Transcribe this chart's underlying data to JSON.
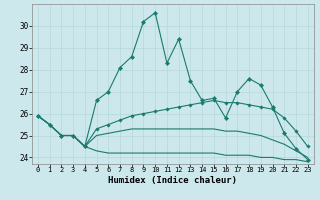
{
  "xlabel": "Humidex (Indice chaleur)",
  "bg_color": "#cce8ec",
  "line_color": "#1a7a6e",
  "grid_color": "#b0d4d8",
  "x": [
    0,
    1,
    2,
    3,
    4,
    5,
    6,
    7,
    8,
    9,
    10,
    11,
    12,
    13,
    14,
    15,
    16,
    17,
    18,
    19,
    20,
    21,
    22,
    23
  ],
  "series1": [
    25.9,
    25.5,
    25.0,
    25.0,
    24.5,
    26.6,
    27.0,
    28.1,
    28.6,
    30.2,
    30.6,
    28.3,
    29.4,
    27.5,
    26.6,
    26.7,
    25.8,
    27.0,
    27.6,
    27.3,
    26.3,
    25.1,
    24.4,
    23.9
  ],
  "series2": [
    25.9,
    25.5,
    25.0,
    25.0,
    24.5,
    25.3,
    25.5,
    25.7,
    25.9,
    26.0,
    26.1,
    26.2,
    26.3,
    26.4,
    26.5,
    26.6,
    26.5,
    26.5,
    26.4,
    26.3,
    26.2,
    25.8,
    25.2,
    24.5
  ],
  "series3": [
    25.9,
    25.5,
    25.0,
    25.0,
    24.5,
    25.0,
    25.1,
    25.2,
    25.3,
    25.3,
    25.3,
    25.3,
    25.3,
    25.3,
    25.3,
    25.3,
    25.2,
    25.2,
    25.1,
    25.0,
    24.8,
    24.6,
    24.3,
    24.0
  ],
  "series4": [
    25.9,
    25.5,
    25.0,
    25.0,
    24.5,
    24.3,
    24.2,
    24.2,
    24.2,
    24.2,
    24.2,
    24.2,
    24.2,
    24.2,
    24.2,
    24.2,
    24.1,
    24.1,
    24.1,
    24.0,
    24.0,
    23.9,
    23.9,
    23.8
  ],
  "ylim": [
    23.7,
    31.0
  ],
  "yticks": [
    24,
    25,
    26,
    27,
    28,
    29,
    30
  ],
  "xticks": [
    0,
    1,
    2,
    3,
    4,
    5,
    6,
    7,
    8,
    9,
    10,
    11,
    12,
    13,
    14,
    15,
    16,
    17,
    18,
    19,
    20,
    21,
    22,
    23
  ]
}
